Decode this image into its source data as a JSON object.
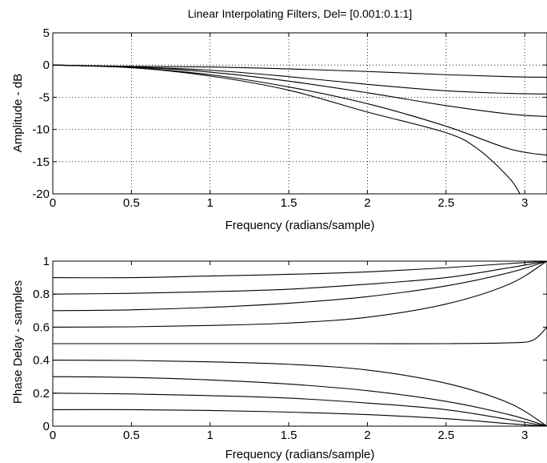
{
  "chart_data": [
    {
      "type": "line",
      "title": "Linear Interpolating Filters, Del= [0.001:0.1:1]",
      "xlabel": "Frequency (radians/sample)",
      "ylabel": "Amplitude - dB",
      "xlim": [
        0,
        3.1416
      ],
      "ylim": [
        -20,
        5
      ],
      "xticks": [
        0,
        0.5,
        1,
        1.5,
        2,
        2.5,
        3
      ],
      "xtick_labels": [
        "0",
        "0.5",
        "1",
        "1.5",
        "2",
        "2.5",
        "3"
      ],
      "yticks": [
        -20,
        -15,
        -10,
        -5,
        0,
        5
      ],
      "ytick_labels": [
        "-20",
        "-15",
        "-10",
        "-5",
        "0",
        "5"
      ],
      "grid": true,
      "series": [
        {
          "x": [
            0,
            0.5,
            1,
            1.5,
            2,
            2.5,
            2.9,
            3.1416
          ],
          "values": [
            0,
            -0.2,
            -0.3,
            -0.6,
            -1,
            -1.5,
            -1.8,
            -1.9
          ]
        },
        {
          "x": [
            0,
            0.5,
            1,
            1.5,
            2,
            2.5,
            2.9,
            3.1416
          ],
          "values": [
            0,
            -0.3,
            -0.8,
            -1.8,
            -3,
            -4,
            -4.4,
            -4.5
          ]
        },
        {
          "x": [
            0,
            0.5,
            1,
            1.5,
            2,
            2.5,
            2.9,
            3.1416
          ],
          "values": [
            0,
            -0.3,
            -1.1,
            -2.5,
            -4.3,
            -6.3,
            -7.6,
            -8
          ]
        },
        {
          "x": [
            0,
            0.5,
            1,
            1.5,
            2,
            2.5,
            2.9,
            3.1416
          ],
          "values": [
            0,
            -0.4,
            -1.5,
            -3.4,
            -6,
            -9.5,
            -13,
            -14
          ]
        },
        {
          "x": [
            0,
            0.5,
            1,
            1.5,
            2,
            2.5,
            2.7,
            2.9,
            2.97
          ],
          "values": [
            0,
            -0.4,
            -1.7,
            -3.9,
            -7.3,
            -10.5,
            -13,
            -17.5,
            -20
          ]
        }
      ]
    },
    {
      "type": "line",
      "title": "",
      "xlabel": "Frequency (radians/sample)",
      "ylabel": "Phase Delay - samples",
      "xlim": [
        0,
        3.1416
      ],
      "ylim": [
        0,
        1
      ],
      "xticks": [
        0,
        0.5,
        1,
        1.5,
        2,
        2.5,
        3
      ],
      "xtick_labels": [
        "0",
        "0.5",
        "1",
        "1.5",
        "2",
        "2.5",
        "3"
      ],
      "yticks": [
        0,
        0.2,
        0.4,
        0.6,
        0.8,
        1
      ],
      "ytick_labels": [
        "0",
        "0.2",
        "0.4",
        "0.6",
        "0.8",
        "1"
      ],
      "grid": false,
      "series": [
        {
          "x": [
            0,
            0.5,
            1,
            1.5,
            2,
            2.5,
            2.9,
            3.1416
          ],
          "values": [
            0.9,
            0.9,
            0.91,
            0.92,
            0.935,
            0.96,
            0.985,
            1.0
          ]
        },
        {
          "x": [
            0,
            0.5,
            1,
            1.5,
            2,
            2.5,
            2.9,
            3.1416
          ],
          "values": [
            0.8,
            0.805,
            0.815,
            0.83,
            0.86,
            0.9,
            0.96,
            1.0
          ]
        },
        {
          "x": [
            0,
            0.5,
            1,
            1.5,
            2,
            2.5,
            2.9,
            3.1416
          ],
          "values": [
            0.7,
            0.705,
            0.72,
            0.745,
            0.785,
            0.85,
            0.93,
            1.0
          ]
        },
        {
          "x": [
            0,
            0.5,
            1,
            1.5,
            2,
            2.5,
            2.9,
            3.1416
          ],
          "values": [
            0.6,
            0.602,
            0.61,
            0.625,
            0.66,
            0.74,
            0.86,
            1.0
          ]
        },
        {
          "x": [
            0,
            0.5,
            1,
            1.5,
            2,
            2.5,
            2.9,
            3.05,
            3.1416
          ],
          "values": [
            0.5,
            0.5,
            0.5,
            0.5,
            0.5,
            0.5,
            0.505,
            0.52,
            0.6
          ]
        },
        {
          "x": [
            0,
            0.5,
            1,
            1.5,
            2,
            2.5,
            2.9,
            3.1416
          ],
          "values": [
            0.4,
            0.398,
            0.39,
            0.375,
            0.34,
            0.26,
            0.14,
            0.0
          ]
        },
        {
          "x": [
            0,
            0.5,
            1,
            1.5,
            2,
            2.5,
            2.9,
            3.1416
          ],
          "values": [
            0.3,
            0.295,
            0.28,
            0.255,
            0.215,
            0.15,
            0.07,
            0.0
          ]
        },
        {
          "x": [
            0,
            0.5,
            1,
            1.5,
            2,
            2.5,
            2.9,
            3.1416
          ],
          "values": [
            0.2,
            0.195,
            0.185,
            0.17,
            0.14,
            0.1,
            0.04,
            0.0
          ]
        },
        {
          "x": [
            0,
            0.5,
            1,
            1.5,
            2,
            2.5,
            2.9,
            3.1416
          ],
          "values": [
            0.1,
            0.1,
            0.095,
            0.085,
            0.07,
            0.045,
            0.015,
            0.0
          ]
        }
      ]
    }
  ]
}
